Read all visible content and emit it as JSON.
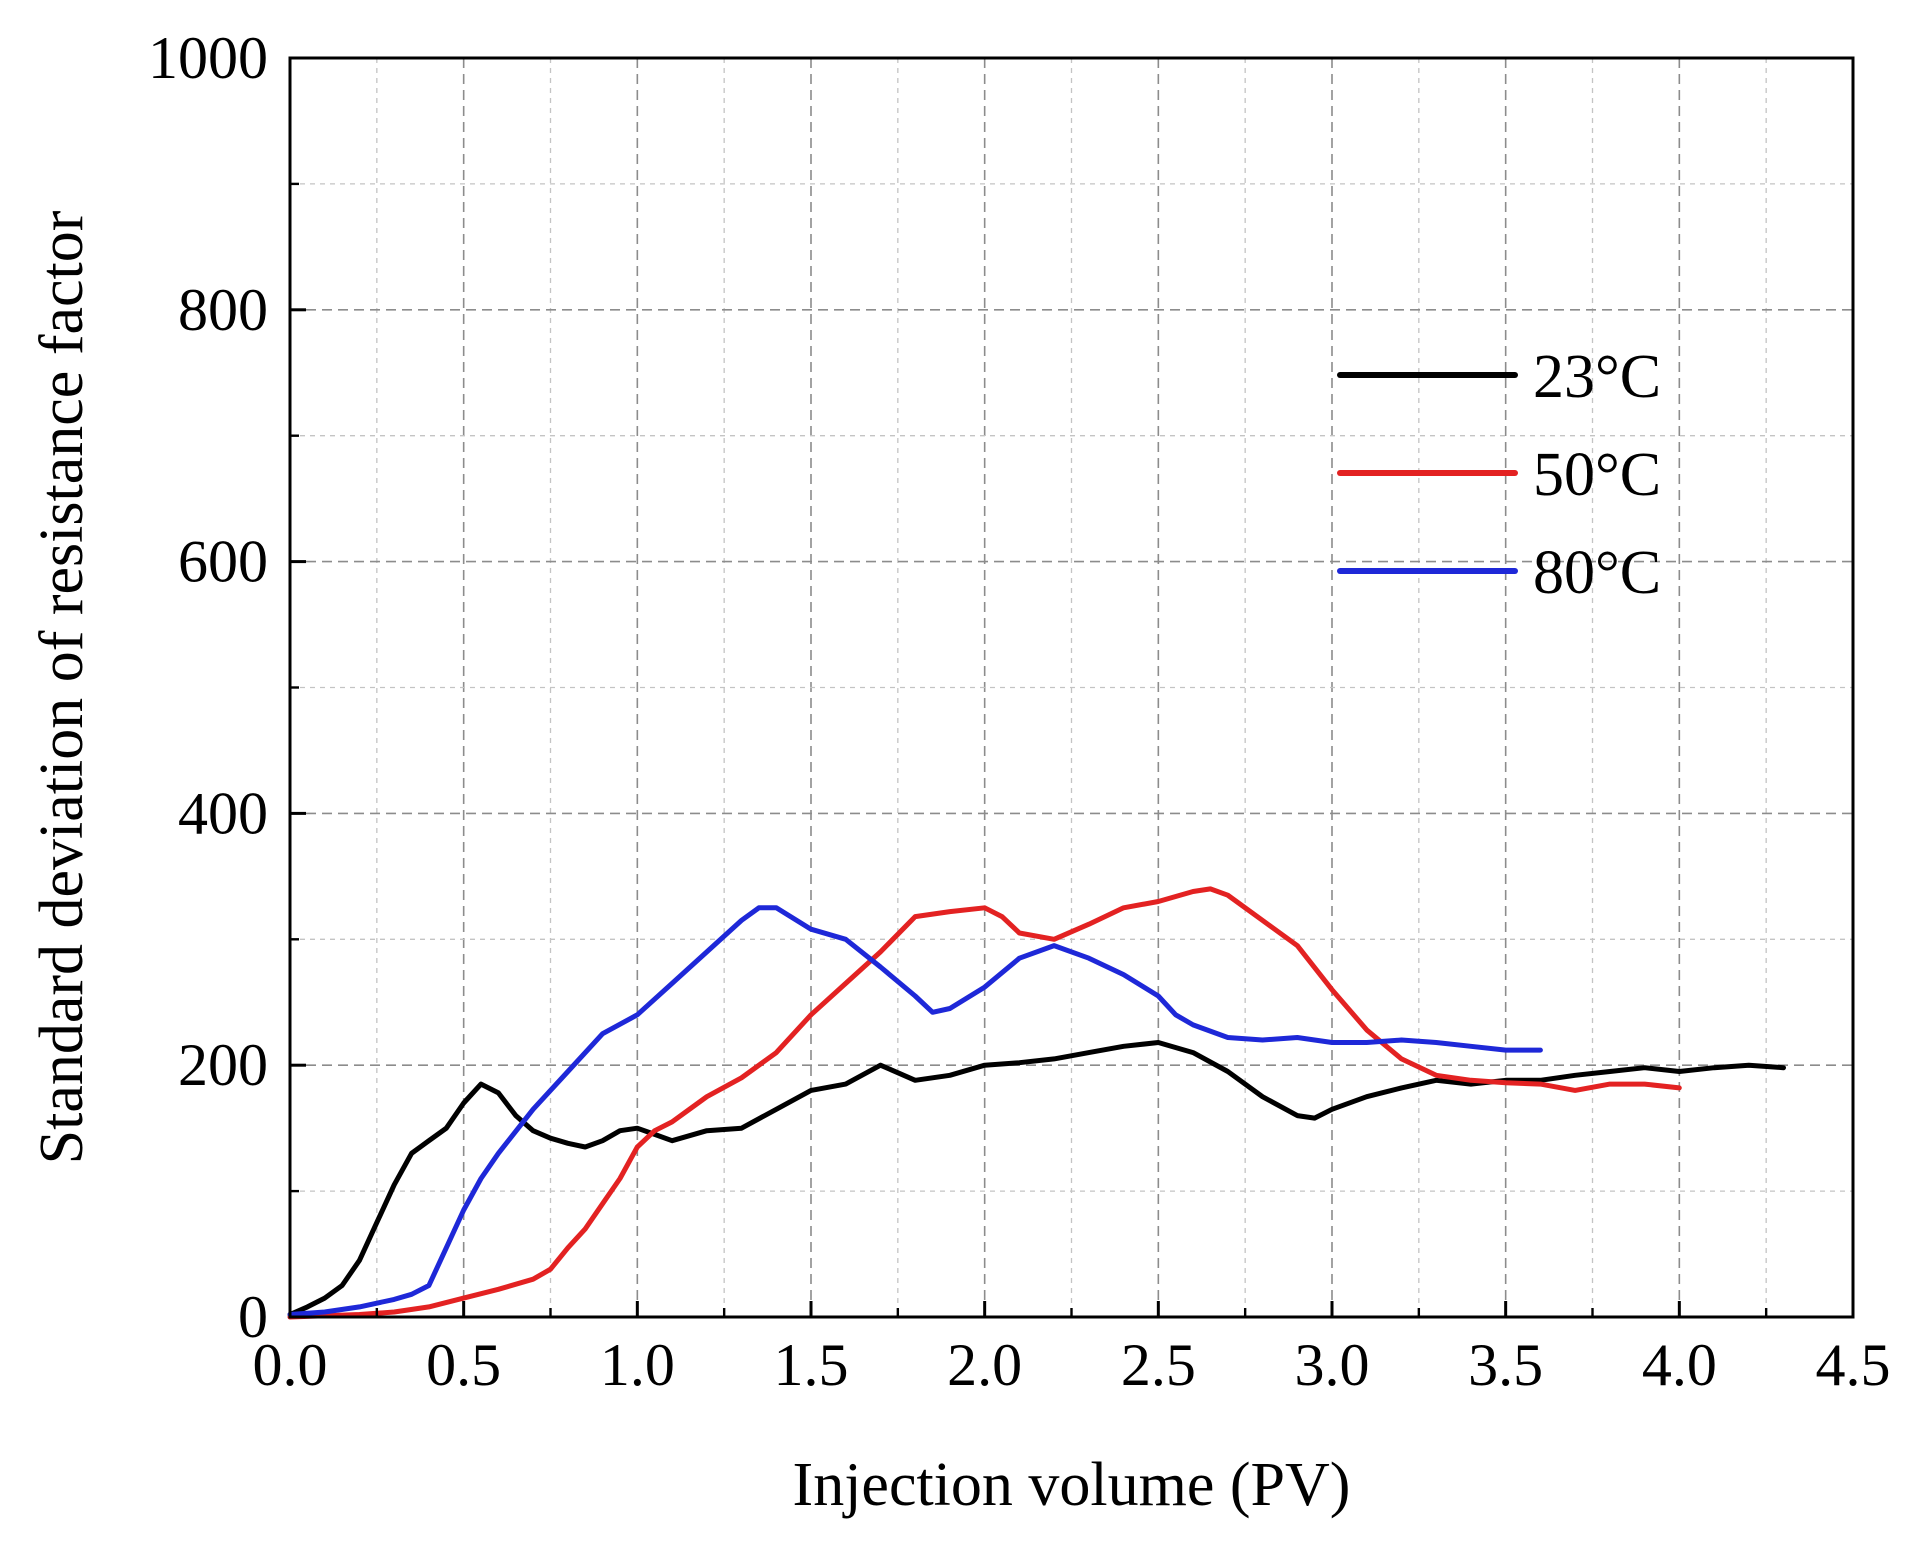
{
  "chart_data": {
    "type": "line",
    "title": "",
    "xlabel": "Injection volume (PV)",
    "ylabel": "Standard deviation of resistance factor",
    "xlim": [
      0.0,
      4.5
    ],
    "ylim": [
      0,
      1000
    ],
    "xticks": [
      "0.0",
      "0.5",
      "1.0",
      "1.5",
      "2.0",
      "2.5",
      "3.0",
      "3.5",
      "4.0",
      "4.5"
    ],
    "yticks": [
      "0",
      "200",
      "400",
      "600",
      "800",
      "1000"
    ],
    "grid": true,
    "legend_position": "upper-right",
    "series": [
      {
        "name": "23°C",
        "color": "#000000",
        "x": [
          0.0,
          0.05,
          0.1,
          0.15,
          0.2,
          0.25,
          0.3,
          0.35,
          0.4,
          0.45,
          0.5,
          0.55,
          0.6,
          0.65,
          0.7,
          0.75,
          0.8,
          0.85,
          0.9,
          0.95,
          1.0,
          1.05,
          1.1,
          1.2,
          1.3,
          1.4,
          1.5,
          1.6,
          1.7,
          1.8,
          1.9,
          2.0,
          2.1,
          2.2,
          2.3,
          2.4,
          2.5,
          2.6,
          2.7,
          2.8,
          2.9,
          2.95,
          3.0,
          3.1,
          3.2,
          3.3,
          3.4,
          3.5,
          3.6,
          3.7,
          3.8,
          3.9,
          4.0,
          4.1,
          4.2,
          4.3
        ],
        "y": [
          2,
          8,
          15,
          25,
          45,
          75,
          105,
          130,
          140,
          150,
          170,
          185,
          178,
          160,
          148,
          142,
          138,
          135,
          140,
          148,
          150,
          145,
          140,
          148,
          150,
          165,
          180,
          185,
          200,
          188,
          192,
          200,
          202,
          205,
          210,
          215,
          218,
          210,
          195,
          175,
          160,
          158,
          165,
          175,
          182,
          188,
          185,
          188,
          188,
          192,
          195,
          198,
          195,
          198,
          200,
          198
        ]
      },
      {
        "name": "50°C",
        "color": "#e32222",
        "x": [
          0.0,
          0.1,
          0.2,
          0.3,
          0.4,
          0.5,
          0.6,
          0.7,
          0.75,
          0.8,
          0.85,
          0.9,
          0.95,
          1.0,
          1.05,
          1.1,
          1.15,
          1.2,
          1.3,
          1.4,
          1.5,
          1.6,
          1.7,
          1.8,
          1.9,
          2.0,
          2.05,
          2.1,
          2.2,
          2.3,
          2.4,
          2.5,
          2.6,
          2.65,
          2.7,
          2.8,
          2.9,
          3.0,
          3.1,
          3.2,
          3.3,
          3.4,
          3.5,
          3.6,
          3.7,
          3.8,
          3.9,
          4.0
        ],
        "y": [
          0,
          1,
          2,
          4,
          8,
          15,
          22,
          30,
          38,
          55,
          70,
          90,
          110,
          135,
          148,
          155,
          165,
          175,
          190,
          210,
          240,
          265,
          290,
          318,
          322,
          325,
          318,
          305,
          300,
          312,
          325,
          330,
          338,
          340,
          335,
          315,
          295,
          260,
          228,
          205,
          192,
          188,
          186,
          185,
          180,
          185,
          185,
          182
        ]
      },
      {
        "name": "80°C",
        "color": "#1e28d8",
        "x": [
          0.0,
          0.1,
          0.2,
          0.3,
          0.35,
          0.4,
          0.45,
          0.5,
          0.55,
          0.6,
          0.7,
          0.8,
          0.9,
          1.0,
          1.1,
          1.2,
          1.3,
          1.35,
          1.4,
          1.5,
          1.6,
          1.7,
          1.8,
          1.85,
          1.9,
          2.0,
          2.1,
          2.2,
          2.3,
          2.4,
          2.5,
          2.55,
          2.6,
          2.7,
          2.8,
          2.9,
          3.0,
          3.1,
          3.2,
          3.3,
          3.4,
          3.5,
          3.6
        ],
        "y": [
          2,
          4,
          8,
          14,
          18,
          25,
          55,
          85,
          110,
          130,
          165,
          195,
          225,
          240,
          265,
          290,
          315,
          325,
          325,
          308,
          300,
          278,
          255,
          242,
          245,
          262,
          285,
          295,
          285,
          272,
          255,
          240,
          232,
          222,
          220,
          222,
          218,
          218,
          220,
          218,
          215,
          212,
          212
        ]
      }
    ]
  }
}
